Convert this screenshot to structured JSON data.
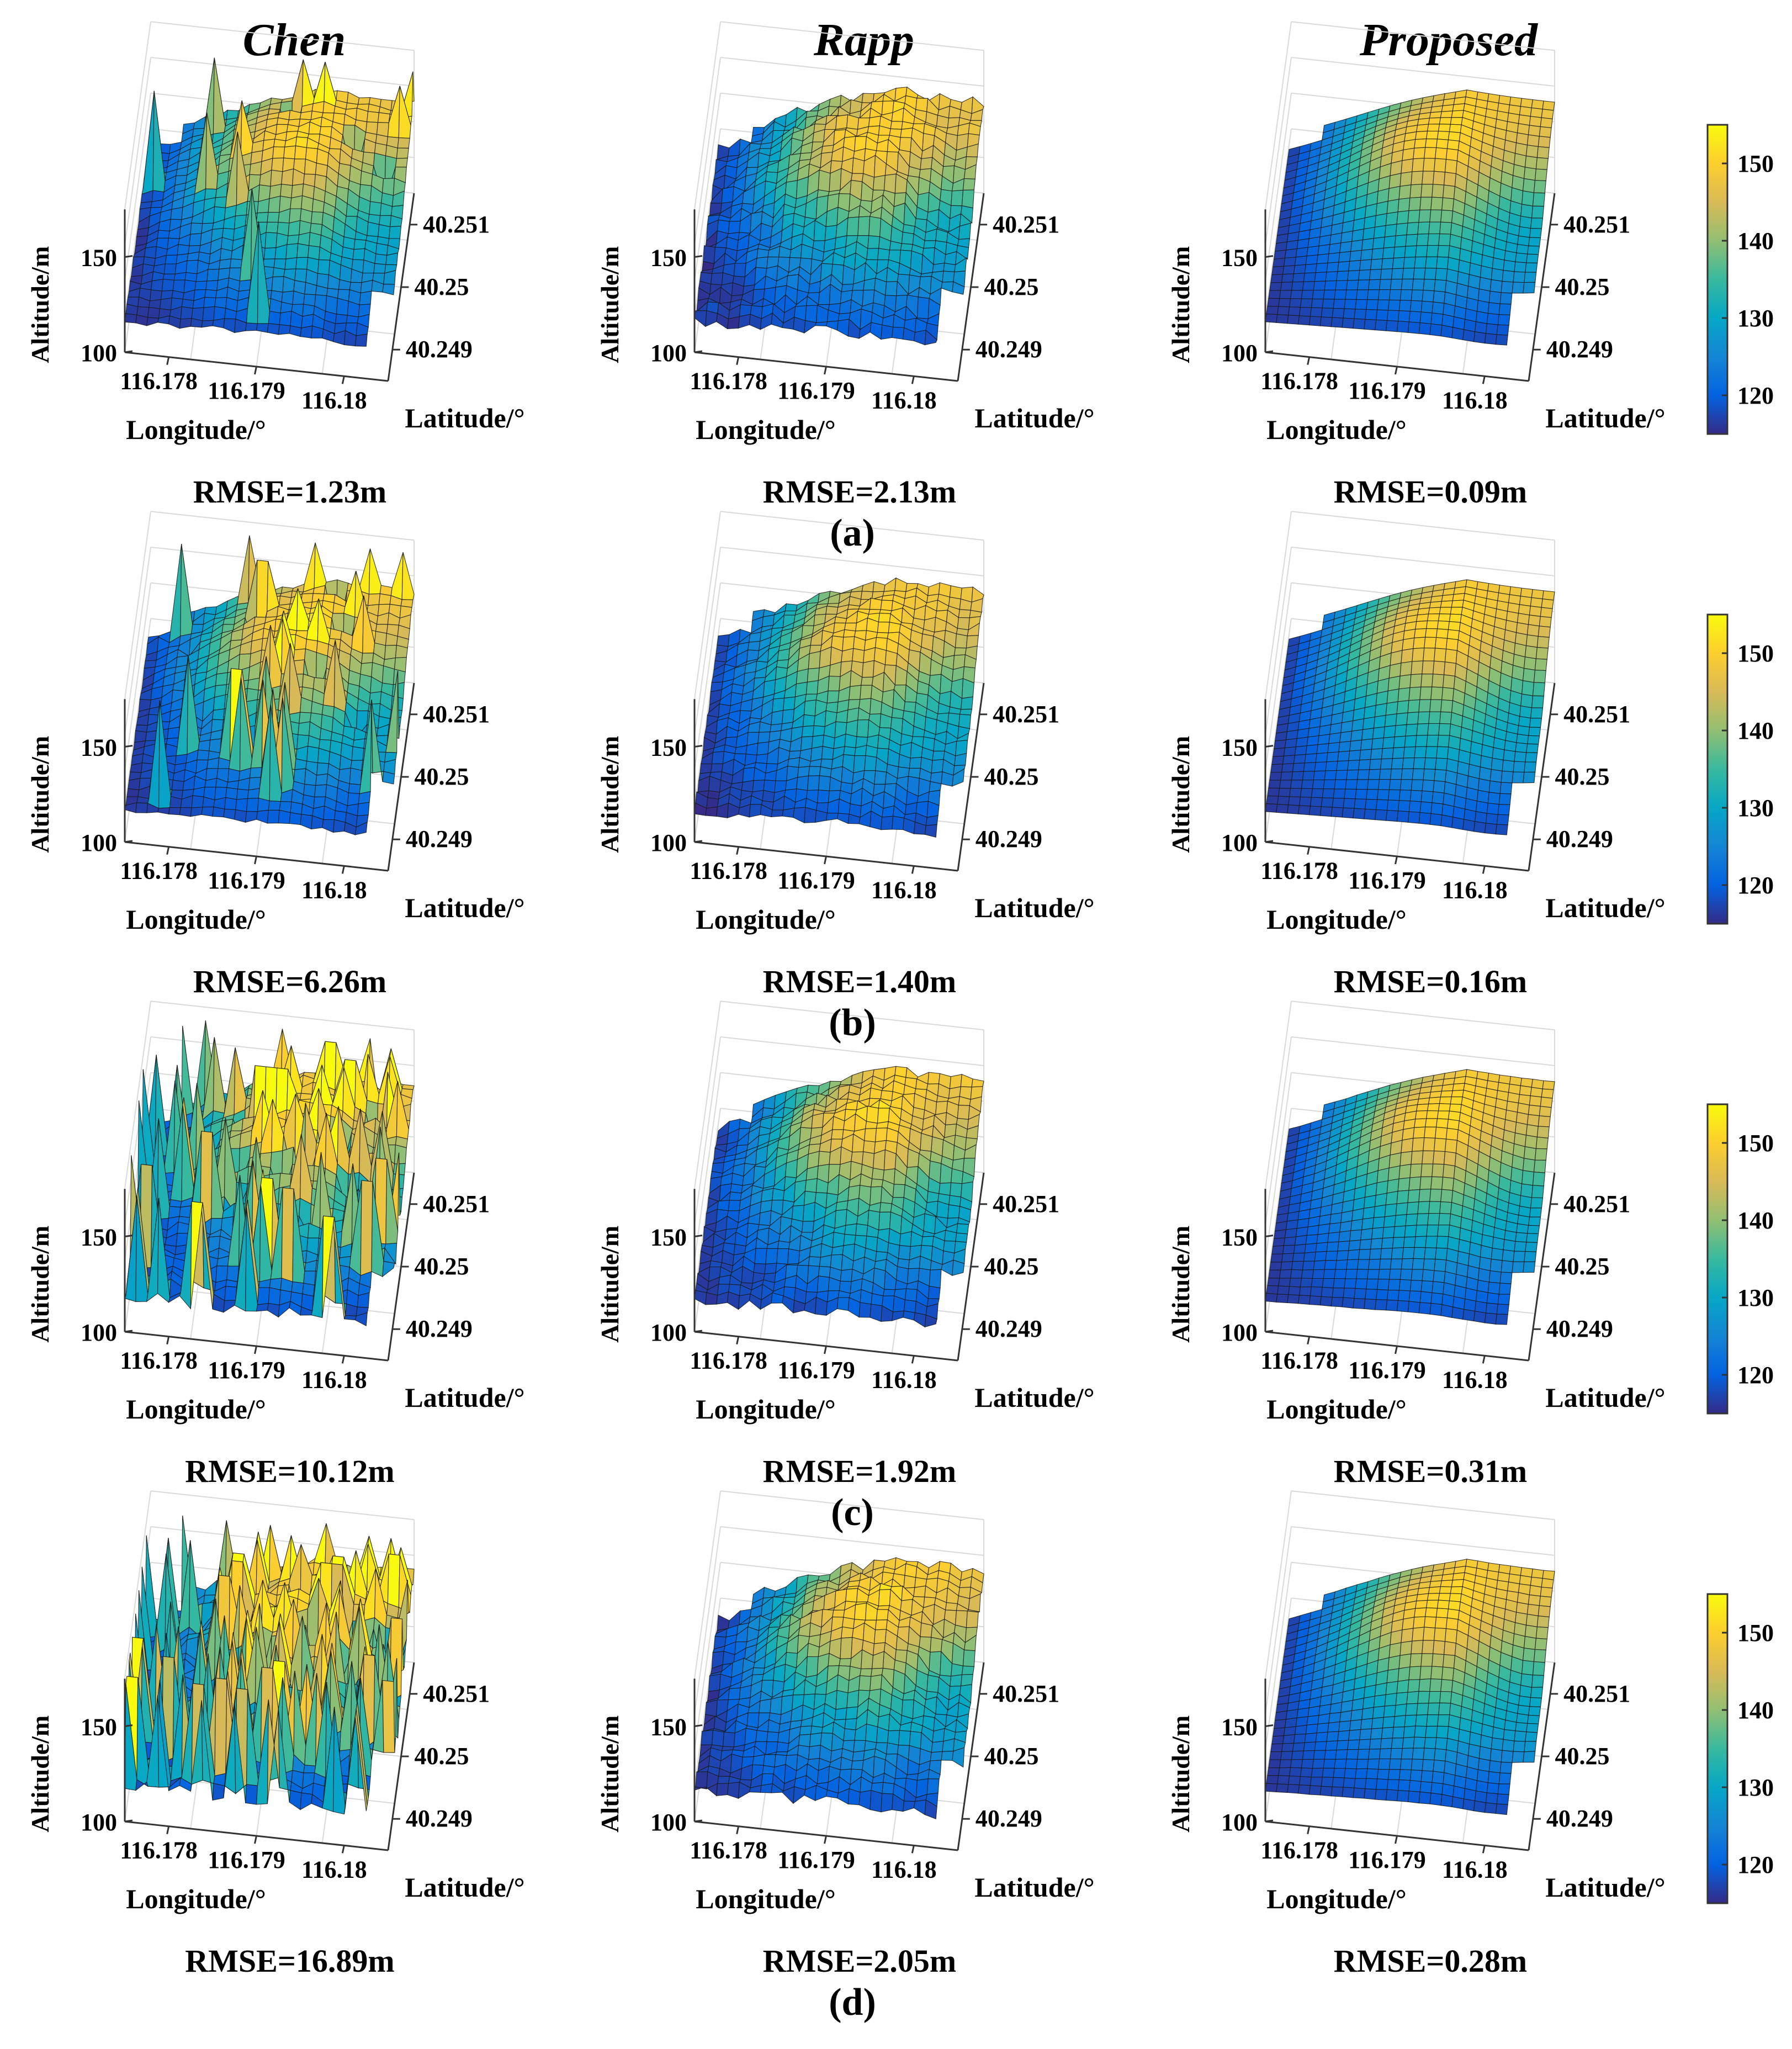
{
  "figure": {
    "column_headers": [
      "Chen",
      "Rapp",
      "Proposed"
    ],
    "row_labels": [
      "(a)",
      "(b)",
      "(c)",
      "(d)"
    ]
  },
  "axis": {
    "zlabel": "Altitude/m",
    "xlabel": "Longitude/°",
    "ylabel": "Latitude/°",
    "zticks": [
      "100",
      "150"
    ],
    "xticks": [
      "116.178",
      "116.179",
      "116.18"
    ],
    "yticks": [
      "40.249",
      "40.25",
      "40.251"
    ]
  },
  "colorbar": {
    "colormap": "parula",
    "ticks": [
      "120",
      "130",
      "140",
      "150"
    ],
    "range": [
      115,
      155
    ],
    "colors": [
      "#352a87",
      "#0363e1",
      "#1485d4",
      "#06a7c6",
      "#38b99e",
      "#92bf73",
      "#d9ba56",
      "#fcce2e",
      "#f9fb0e"
    ]
  },
  "chart_data": [
    {
      "type": "surface",
      "row": "(a)",
      "method": "Chen",
      "rmse_label": "RMSE=1.23m",
      "rmse_m": 1.23,
      "zlim": [
        100,
        175
      ],
      "xlim": [
        116.1775,
        116.1805
      ],
      "ylim": [
        40.2485,
        40.2515
      ],
      "clim": [
        115,
        155
      ],
      "noise": 0.1,
      "spikes": 0.02
    },
    {
      "type": "surface",
      "row": "(a)",
      "method": "Rapp",
      "rmse_label": "RMSE=2.13m",
      "rmse_m": 2.13,
      "zlim": [
        100,
        175
      ],
      "xlim": [
        116.1775,
        116.1805
      ],
      "ylim": [
        40.2485,
        40.2515
      ],
      "clim": [
        115,
        155
      ],
      "noise": 0.2,
      "spikes": 0
    },
    {
      "type": "surface",
      "row": "(a)",
      "method": "Proposed",
      "rmse_label": "RMSE=0.09m",
      "rmse_m": 0.09,
      "zlim": [
        100,
        175
      ],
      "xlim": [
        116.1775,
        116.1805
      ],
      "ylim": [
        40.2485,
        40.2515
      ],
      "clim": [
        115,
        155
      ],
      "noise": 0,
      "spikes": 0
    },
    {
      "type": "surface",
      "row": "(b)",
      "method": "Chen",
      "rmse_label": "RMSE=6.26m",
      "rmse_m": 6.26,
      "zlim": [
        100,
        175
      ],
      "xlim": [
        116.1775,
        116.1805
      ],
      "ylim": [
        40.2485,
        40.2515
      ],
      "clim": [
        115,
        155
      ],
      "noise": 0.1,
      "spikes": 0.07
    },
    {
      "type": "surface",
      "row": "(b)",
      "method": "Rapp",
      "rmse_label": "RMSE=1.40m",
      "rmse_m": 1.4,
      "zlim": [
        100,
        175
      ],
      "xlim": [
        116.1775,
        116.1805
      ],
      "ylim": [
        40.2485,
        40.2515
      ],
      "clim": [
        115,
        155
      ],
      "noise": 0.14,
      "spikes": 0
    },
    {
      "type": "surface",
      "row": "(b)",
      "method": "Proposed",
      "rmse_label": "RMSE=0.16m",
      "rmse_m": 0.16,
      "zlim": [
        100,
        175
      ],
      "xlim": [
        116.1775,
        116.1805
      ],
      "ylim": [
        40.2485,
        40.2515
      ],
      "clim": [
        115,
        155
      ],
      "noise": 0,
      "spikes": 0
    },
    {
      "type": "surface",
      "row": "(c)",
      "method": "Chen",
      "rmse_label": "RMSE=10.12m",
      "rmse_m": 10.12,
      "zlim": [
        100,
        175
      ],
      "xlim": [
        116.1775,
        116.1805
      ],
      "ylim": [
        40.2485,
        40.2515
      ],
      "clim": [
        115,
        155
      ],
      "noise": 0.15,
      "spikes": 0.16
    },
    {
      "type": "surface",
      "row": "(c)",
      "method": "Rapp",
      "rmse_label": "RMSE=1.92m",
      "rmse_m": 1.92,
      "zlim": [
        100,
        175
      ],
      "xlim": [
        116.1775,
        116.1805
      ],
      "ylim": [
        40.2485,
        40.2515
      ],
      "clim": [
        115,
        155
      ],
      "noise": 0.17,
      "spikes": 0
    },
    {
      "type": "surface",
      "row": "(c)",
      "method": "Proposed",
      "rmse_label": "RMSE=0.31m",
      "rmse_m": 0.31,
      "zlim": [
        100,
        175
      ],
      "xlim": [
        116.1775,
        116.1805
      ],
      "ylim": [
        40.2485,
        40.2515
      ],
      "clim": [
        115,
        155
      ],
      "noise": 0.01,
      "spikes": 0
    },
    {
      "type": "surface",
      "row": "(d)",
      "method": "Chen",
      "rmse_label": "RMSE=16.89m",
      "rmse_m": 16.89,
      "zlim": [
        100,
        175
      ],
      "xlim": [
        116.1775,
        116.1805
      ],
      "ylim": [
        40.2485,
        40.2515
      ],
      "clim": [
        115,
        155
      ],
      "noise": 0.2,
      "spikes": 0.3
    },
    {
      "type": "surface",
      "row": "(d)",
      "method": "Rapp",
      "rmse_label": "RMSE=2.05m",
      "rmse_m": 2.05,
      "zlim": [
        100,
        175
      ],
      "xlim": [
        116.1775,
        116.1805
      ],
      "ylim": [
        40.2485,
        40.2515
      ],
      "clim": [
        115,
        155
      ],
      "noise": 0.19,
      "spikes": 0
    },
    {
      "type": "surface",
      "row": "(d)",
      "method": "Proposed",
      "rmse_label": "RMSE=0.28m",
      "rmse_m": 0.28,
      "zlim": [
        100,
        175
      ],
      "xlim": [
        116.1775,
        116.1805
      ],
      "ylim": [
        40.2485,
        40.2515
      ],
      "clim": [
        115,
        155
      ],
      "noise": 0.01,
      "spikes": 0
    }
  ]
}
